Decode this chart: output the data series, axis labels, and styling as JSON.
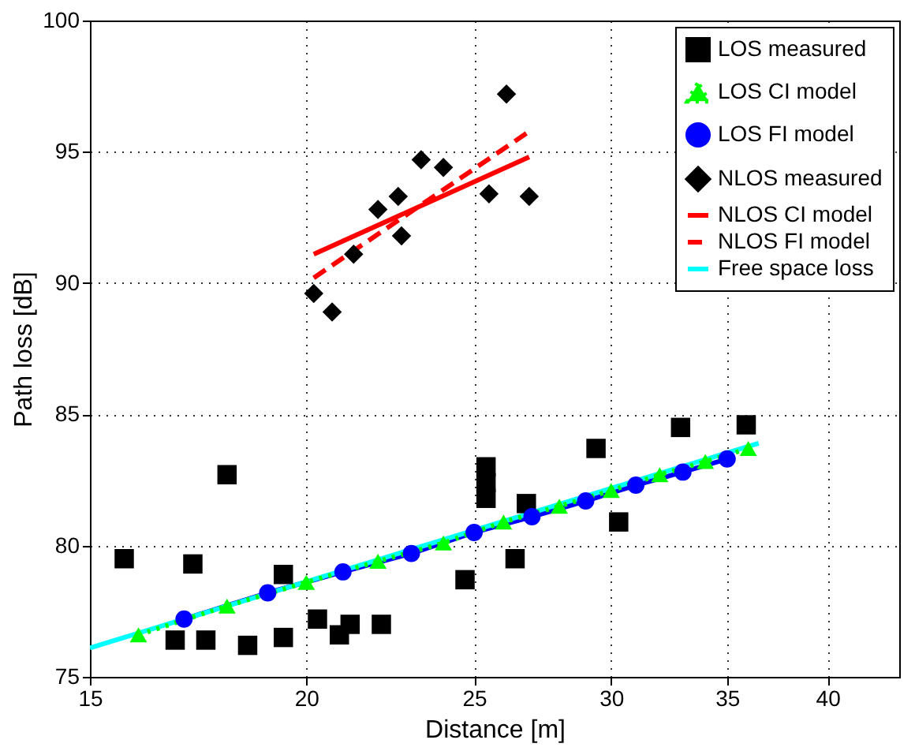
{
  "chart_data": {
    "type": "scatter",
    "xlabel": "Distance [m]",
    "ylabel": "Path loss [dB]",
    "log": "x",
    "xlim": [
      15,
      44
    ],
    "xticks": [
      15,
      20,
      25,
      30,
      35,
      40
    ],
    "ylim": [
      75,
      100
    ],
    "yticks": [
      75,
      80,
      85,
      90,
      95,
      100
    ],
    "grid": true,
    "legend": "top right",
    "series": [
      {
        "name": "LOS measured",
        "marker": "square",
        "color": "#000000",
        "x": [
          15.7,
          16.8,
          17.2,
          17.5,
          18.0,
          18.5,
          19.4,
          19.4,
          20.3,
          20.9,
          21.2,
          22.1,
          24.7,
          25.4,
          25.4,
          25.4,
          26.4,
          26.8,
          29.4,
          30.3,
          32.9,
          35.9
        ],
        "values": [
          79.5,
          76.4,
          79.3,
          76.4,
          82.7,
          76.2,
          76.5,
          78.9,
          77.2,
          76.6,
          77.0,
          77.0,
          78.7,
          83.0,
          82.4,
          81.8,
          79.5,
          81.6,
          83.7,
          80.9,
          84.5,
          84.6
        ]
      },
      {
        "name": "LOS CI model",
        "type": "line",
        "line_style": "dotted",
        "marker": "triangle",
        "color": "#00ff00",
        "x": [
          16,
          18,
          20,
          22,
          24,
          26,
          28,
          30,
          32,
          34,
          36
        ],
        "values": [
          76.6,
          77.7,
          78.6,
          79.4,
          80.1,
          80.9,
          81.5,
          82.1,
          82.7,
          83.2,
          83.7
        ]
      },
      {
        "name": "LOS FI model",
        "type": "line",
        "line_style": "solid",
        "marker": "circle",
        "color": "#0000ff",
        "x": [
          17,
          19,
          21,
          23,
          25,
          27,
          29,
          31,
          33,
          35
        ],
        "values": [
          77.2,
          78.2,
          79.0,
          79.7,
          80.5,
          81.1,
          81.7,
          82.3,
          82.8,
          83.3
        ]
      },
      {
        "name": "NLOS measured",
        "marker": "diamond",
        "color": "#000000",
        "x": [
          20.2,
          20.7,
          21.3,
          22.0,
          22.6,
          22.7,
          23.3,
          24.0,
          25.5,
          26.1,
          26.9
        ],
        "values": [
          89.6,
          88.9,
          91.1,
          92.8,
          93.3,
          91.8,
          94.7,
          94.4,
          93.4,
          97.2,
          93.3
        ]
      },
      {
        "name": "NLOS CI model",
        "type": "line",
        "line_style": "solid",
        "marker": "none",
        "color": "#ff0000",
        "x": [
          20.2,
          26.9
        ],
        "values": [
          91.1,
          94.8
        ]
      },
      {
        "name": "NLOS FI model",
        "type": "line",
        "line_style": "dashed",
        "marker": "none",
        "color": "#ff0000",
        "x": [
          20.2,
          26.8
        ],
        "values": [
          90.2,
          95.7
        ]
      },
      {
        "name": "Free space loss",
        "type": "line",
        "line_style": "solid",
        "marker": "none",
        "color": "#00ffff",
        "x": [
          15,
          36.5
        ],
        "values": [
          76.1,
          83.9
        ]
      }
    ]
  }
}
